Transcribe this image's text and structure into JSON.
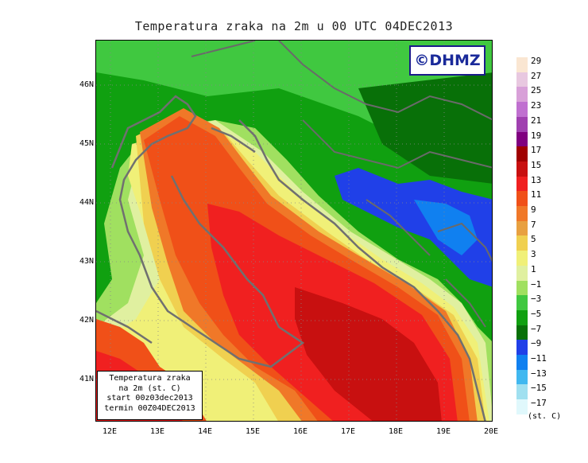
{
  "title": "Temperatura zraka na 2m u 00 UTC 04DEC2013",
  "logo": "©DHMZ",
  "infobox": {
    "line1": "Temperatura zraka",
    "line2": "na 2m (st. C)",
    "line3": "start 00z03dec2013",
    "line4": "termin 00Z04DEC2013"
  },
  "lat_labels": [
    "46N",
    "45N",
    "44N",
    "43N",
    "42N",
    "41N"
  ],
  "lon_labels": [
    "12E",
    "13E",
    "14E",
    "15E",
    "16E",
    "17E",
    "18E",
    "19E",
    "20E"
  ],
  "legend": {
    "unit": "(st. C)",
    "labels": [
      "29",
      "27",
      "25",
      "23",
      "21",
      "19",
      "17",
      "15",
      "13",
      "11",
      "9",
      "7",
      "5",
      "3",
      "1",
      "−1",
      "−3",
      "−5",
      "−7",
      "−9",
      "−11",
      "−13",
      "−15",
      "−17"
    ],
    "colors": [
      "#fae6d2",
      "#e8c8e0",
      "#d8a0d8",
      "#c070d0",
      "#a040b0",
      "#800080",
      "#a00000",
      "#c81010",
      "#f02020",
      "#f05018",
      "#f07828",
      "#e8a040",
      "#f0d050",
      "#f0f078",
      "#e0f0a0",
      "#a0e060",
      "#40c840",
      "#10a010",
      "#087008",
      "#2040e8",
      "#1080f0",
      "#40b8f0",
      "#a0e0f0",
      "#e0f8fc"
    ]
  }
}
